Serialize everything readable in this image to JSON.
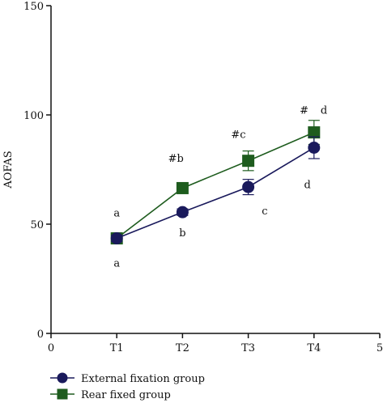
{
  "chart_data": {
    "type": "line",
    "title": "",
    "xlabel": "",
    "ylabel": "AOFAS",
    "xlim": [
      0,
      5
    ],
    "ylim": [
      0,
      150
    ],
    "x_ticks": [
      0,
      1,
      2,
      3,
      4,
      5
    ],
    "x_tick_labels": [
      "0",
      "T1",
      "T2",
      "T3",
      "T4",
      "5"
    ],
    "y_ticks": [
      0,
      50,
      100,
      150
    ],
    "y_tick_labels": [
      "0",
      "50",
      "100",
      "150"
    ],
    "grid": false,
    "legend_position": "bottom-left",
    "series": [
      {
        "name": "External fixation group",
        "marker": "circle",
        "color": "#1a1a5c",
        "x": [
          1,
          2,
          3,
          4
        ],
        "values": [
          43.5,
          55.5,
          67,
          85
        ],
        "error": [
          1.5,
          1.5,
          3.5,
          5
        ]
      },
      {
        "name": "Rear fixed group",
        "marker": "square",
        "color": "#1e5c1e",
        "x": [
          1,
          2,
          3,
          4
        ],
        "values": [
          43.5,
          66.5,
          79,
          92
        ],
        "error": [
          1.5,
          1.5,
          4.5,
          5.5
        ]
      }
    ],
    "annotations": [
      {
        "text": "a",
        "x": 1,
        "y": 55
      },
      {
        "text": "a",
        "x": 1,
        "y": 32
      },
      {
        "text": "#b",
        "x": 1.9,
        "y": 80
      },
      {
        "text": "b",
        "x": 2,
        "y": 46
      },
      {
        "text": "#c",
        "x": 2.85,
        "y": 91
      },
      {
        "text": "c",
        "x": 3.25,
        "y": 56
      },
      {
        "text": "#",
        "x": 3.85,
        "y": 102
      },
      {
        "text": "d",
        "x": 4.15,
        "y": 102
      },
      {
        "text": "d",
        "x": 3.9,
        "y": 68
      }
    ]
  }
}
